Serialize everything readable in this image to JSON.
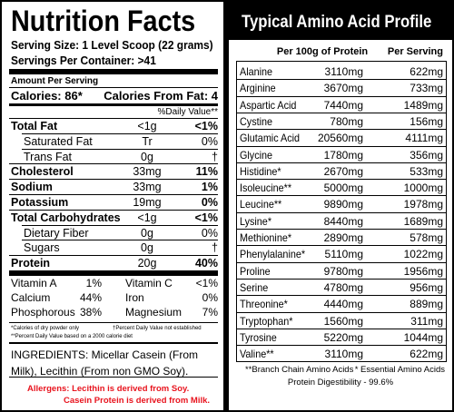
{
  "nutrition": {
    "title": "Nutrition Facts",
    "serving_size": "Serving Size: 1 Level Scoop (22 grams)",
    "servings_per_container": "Servings Per Container: >41",
    "amount_per_serving": "Amount Per Serving",
    "calories": "Calories: 86*",
    "calories_from_fat": "Calories From Fat: 4",
    "daily_value_header": "%Daily Value**",
    "nutrients": [
      {
        "name": "Total Fat",
        "amount": "<1g",
        "dv": "<1%",
        "components": [
          {
            "name": "Saturated Fat",
            "amount": "Tr",
            "dv": "0%"
          },
          {
            "name": "Trans Fat",
            "amount": "0g",
            "dv": "†"
          }
        ]
      },
      {
        "name": "Cholesterol",
        "amount": "33mg",
        "dv": "11%"
      },
      {
        "name": "Sodium",
        "amount": "33mg",
        "dv": "1%"
      },
      {
        "name": "Potassium",
        "amount": "19mg",
        "dv": "0%"
      },
      {
        "name": "Total Carbohydrates",
        "amount": "<1g",
        "dv": "<1%",
        "components": [
          {
            "name": "Dietary Fiber",
            "amount": "0g",
            "dv": "0%"
          },
          {
            "name": "Sugars",
            "amount": "0g",
            "dv": "†"
          }
        ]
      },
      {
        "name": "Protein",
        "amount": "20g",
        "dv": "40%"
      }
    ],
    "vitamins": [
      [
        {
          "name": "Vitamin A",
          "dv": "1%"
        },
        {
          "name": "Vitamin C",
          "dv": "<1%"
        }
      ],
      [
        {
          "name": "Calcium",
          "dv": "44%"
        },
        {
          "name": "Iron",
          "dv": "0%"
        }
      ],
      [
        {
          "name": "Phosphorous",
          "dv": "38%"
        },
        {
          "name": "Magnesium",
          "dv": "7%"
        }
      ]
    ],
    "footnotes": [
      "*Calories of dry powder only",
      "**Percent Daily Value based on a 2000 calorie diet",
      "†Percent Daily Value not established"
    ],
    "ingredients": "INGREDIENTS: Micellar Casein (From Milk), Lecithin (From non GMO Soy).",
    "allergens": [
      "Allergens: Lecithin is derived from Soy.",
      "Casein Protein is derived from Milk."
    ]
  },
  "amino": {
    "title": "Typical Amino Acid Profile",
    "columns": [
      "Per 100g of Protein",
      "Per Serving"
    ],
    "rows": [
      [
        "Alanine",
        "3110mg",
        "622mg"
      ],
      [
        "Arginine",
        "3670mg",
        "733mg"
      ],
      [
        "Aspartic Acid",
        "7440mg",
        "1489mg"
      ],
      [
        "Cystine",
        "780mg",
        "156mg"
      ],
      [
        "Glutamic Acid",
        "20560mg",
        "4111mg"
      ],
      [
        "Glycine",
        "1780mg",
        "356mg"
      ],
      [
        "Histidine*",
        "2670mg",
        "533mg"
      ],
      [
        "Isoleucine**",
        "5000mg",
        "1000mg"
      ],
      [
        "Leucine**",
        "9890mg",
        "1978mg"
      ],
      [
        "Lysine*",
        "8440mg",
        "1689mg"
      ],
      [
        "Methionine*",
        "2890mg",
        "578mg"
      ],
      [
        "Phenylalanine*",
        "5110mg",
        "1022mg"
      ],
      [
        "Proline",
        "9780mg",
        "1956mg"
      ],
      [
        "Serine",
        "4780mg",
        "956mg"
      ],
      [
        "Threonine*",
        "4440mg",
        "889mg"
      ],
      [
        "Tryptophan*",
        "1560mg",
        "311mg"
      ],
      [
        "Tyrosine",
        "5220mg",
        "1044mg"
      ],
      [
        "Valine**",
        "3110mg",
        "622mg"
      ]
    ],
    "notes": [
      "**Branch Chain Amino Acids",
      "* Essential Amino Acids"
    ],
    "digestibility": "Protein Digestibility - 99.6%"
  }
}
